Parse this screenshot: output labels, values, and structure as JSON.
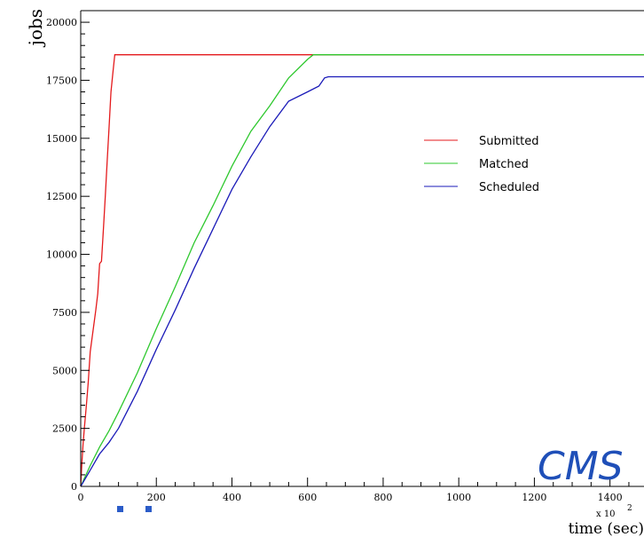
{
  "chart_data": {
    "type": "line",
    "title": "",
    "xlabel": "time (sec)",
    "ylabel": "jobs",
    "x_multiplier_label": "x 10",
    "x_multiplier_exponent": "2",
    "xlim": [
      0,
      1490
    ],
    "ylim": [
      0,
      20500
    ],
    "x_ticks": [
      0,
      200,
      400,
      600,
      800,
      1000,
      1200,
      1400
    ],
    "y_ticks": [
      0,
      2500,
      5000,
      7500,
      10000,
      12500,
      15000,
      17500,
      20000
    ],
    "grid": false,
    "legend_position": "center-right",
    "series": [
      {
        "name": "Submitted",
        "color": "#e41a1c",
        "x": [
          0,
          3,
          6,
          10,
          15,
          20,
          25,
          30,
          35,
          40,
          45,
          50,
          55,
          60,
          65,
          70,
          75,
          80,
          85,
          90,
          1490
        ],
        "y": [
          0,
          1000,
          1800,
          2600,
          3500,
          4500,
          5800,
          6400,
          7000,
          7600,
          8300,
          9600,
          9700,
          11100,
          12500,
          14000,
          15500,
          17000,
          17800,
          18600,
          18600
        ]
      },
      {
        "name": "Matched",
        "color": "#2ec82e",
        "x": [
          0,
          25,
          50,
          75,
          100,
          150,
          200,
          250,
          300,
          350,
          400,
          450,
          500,
          550,
          600,
          615,
          1490
        ],
        "y": [
          0,
          900,
          1700,
          2400,
          3200,
          4900,
          6800,
          8600,
          10500,
          12100,
          13800,
          15300,
          16400,
          17600,
          18400,
          18600,
          18600
        ]
      },
      {
        "name": "Scheduled",
        "color": "#1a1ab8",
        "x": [
          0,
          25,
          50,
          75,
          100,
          150,
          200,
          250,
          300,
          350,
          400,
          450,
          500,
          550,
          600,
          630,
          645,
          655,
          1490
        ],
        "y": [
          0,
          700,
          1400,
          1900,
          2500,
          4100,
          5900,
          7600,
          9400,
          11100,
          12800,
          14200,
          15500,
          16600,
          17000,
          17250,
          17600,
          17650,
          17650
        ]
      }
    ]
  },
  "logo": {
    "text": "CMS"
  }
}
